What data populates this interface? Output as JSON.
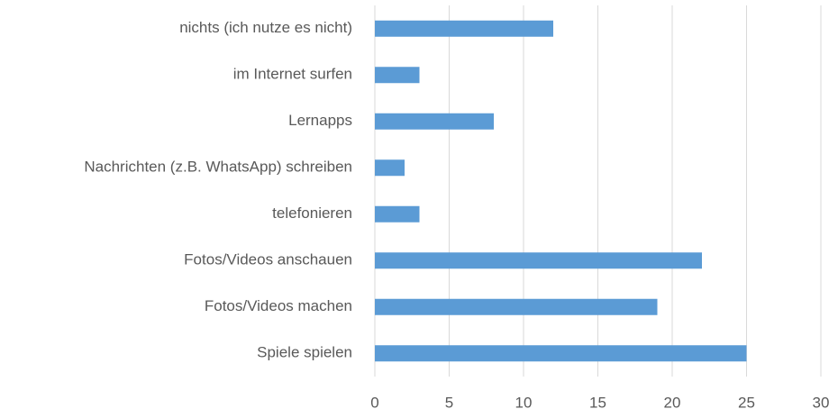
{
  "chart_data": {
    "type": "barh",
    "categories": [
      "nichts (ich nutze es nicht)",
      "im Internet surfen",
      "Lernapps",
      "Nachrichten (z.B. WhatsApp) schreiben",
      "telefonieren",
      "Fotos/Videos anschauen",
      "Fotos/Videos machen",
      "Spiele spielen"
    ],
    "values": [
      12,
      3,
      8,
      2,
      3,
      22,
      19,
      25
    ],
    "color": "#5b9bd5",
    "xlim": [
      0,
      30
    ],
    "xticks": [
      0,
      5,
      10,
      15,
      20,
      25,
      30
    ],
    "grid": true
  }
}
